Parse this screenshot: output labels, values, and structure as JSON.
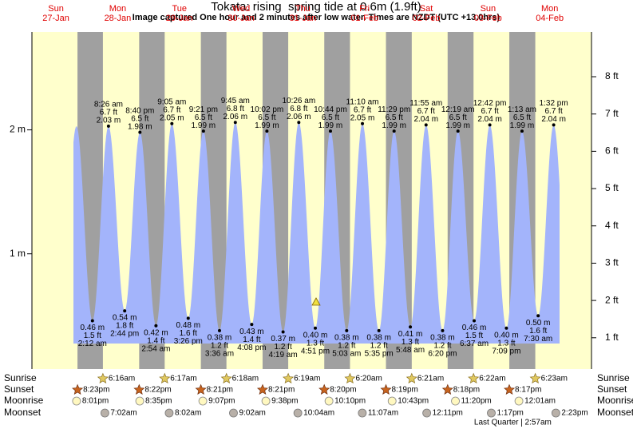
{
  "chart_data": {
    "type": "tide",
    "title": "Tokata: rising  spring tide at 0.6m (1.9ft)",
    "subtitle": "Image captured One hour and 2 minutes after low water. Times are NZDT (UTC +13.0hrs)",
    "ylim": [
      0.07,
      2.79
    ],
    "yticks": [
      {
        "value": 1,
        "label": "1 m"
      },
      {
        "value": 2,
        "label": "2 m"
      }
    ],
    "y2lim": [
      0.16,
      9.2
    ],
    "y2ticks": [
      {
        "value": 1,
        "label": "1 ft"
      },
      {
        "value": 2,
        "label": "2 ft"
      },
      {
        "value": 3,
        "label": "3 ft"
      },
      {
        "value": 4,
        "label": "4 ft"
      },
      {
        "value": 5,
        "label": "5 ft"
      },
      {
        "value": 6,
        "label": "6 ft"
      },
      {
        "value": 7,
        "label": "7 ft"
      },
      {
        "value": 8,
        "label": "8 ft"
      }
    ],
    "colors": {
      "day": "#ffffcc",
      "night": "#a0a0a0",
      "water": "#a3b4fb",
      "header": "#e00000"
    },
    "row_labels": {
      "sunrise": "Sunrise",
      "sunset": "Sunset",
      "moonrise": "Moonrise",
      "moonset": "Moonset"
    },
    "days": [
      {
        "name": "Sun",
        "date": "27-Jan",
        "sunset": "8:23pm",
        "moonrise": "8:01pm"
      },
      {
        "name": "Mon",
        "date": "28-Jan",
        "sunrise": "6:16am",
        "sunset": "8:22pm",
        "moonrise": "8:35pm",
        "moonset": "7:02am",
        "tides": [
          {
            "time": "2:12 am",
            "m": 0.46,
            "m_label": "0.46 m",
            "ft": 1.5,
            "ft_label": "1.5 ft"
          },
          {
            "time": "8:26 am",
            "m": 2.03,
            "m_label": "2.03 m",
            "ft": 6.7,
            "ft_label": "6.7 ft"
          },
          {
            "time": "2:44 pm",
            "m": 0.54,
            "m_label": "0.54 m",
            "ft": 1.8,
            "ft_label": "1.8 ft"
          },
          {
            "time": "8:40 pm",
            "m": 1.98,
            "m_label": "1.98 m",
            "ft": 6.5,
            "ft_label": "6.5 ft"
          }
        ]
      },
      {
        "name": "Tue",
        "date": "29-Jan",
        "sunrise": "6:17am",
        "sunset": "8:21pm",
        "moonrise": "9:07pm",
        "moonset": "8:02am",
        "tides": [
          {
            "time": "2:54 am",
            "m": 0.42,
            "m_label": "0.42 m",
            "ft": 1.4,
            "ft_label": "1.4 ft"
          },
          {
            "time": "9:05 am",
            "m": 2.05,
            "m_label": "2.05 m",
            "ft": 6.7,
            "ft_label": "6.7 ft"
          },
          {
            "time": "3:26 pm",
            "m": 0.48,
            "m_label": "0.48 m",
            "ft": 1.6,
            "ft_label": "1.6 ft"
          },
          {
            "time": "9:21 pm",
            "m": 1.99,
            "m_label": "1.99 m",
            "ft": 6.5,
            "ft_label": "6.5 ft"
          }
        ]
      },
      {
        "name": "Wed",
        "date": "30-Jan",
        "sunrise": "6:18am",
        "sunset": "8:21pm",
        "moonrise": "9:38pm",
        "moonset": "9:02am",
        "tides": [
          {
            "time": "3:36 am",
            "m": 0.38,
            "m_label": "0.38 m",
            "ft": 1.2,
            "ft_label": "1.2 ft"
          },
          {
            "time": "9:45 am",
            "m": 2.06,
            "m_label": "2.06 m",
            "ft": 6.8,
            "ft_label": "6.8 ft"
          },
          {
            "time": "4:08 pm",
            "m": 0.43,
            "m_label": "0.43 m",
            "ft": 1.4,
            "ft_label": "1.4 ft"
          },
          {
            "time": "10:02 pm",
            "m": 1.99,
            "m_label": "1.99 m",
            "ft": 6.5,
            "ft_label": "6.5 ft"
          }
        ]
      },
      {
        "name": "Thu",
        "date": "31-Jan",
        "sunrise": "6:19am",
        "sunset": "8:20pm",
        "moonrise": "10:10pm",
        "moonset": "10:04am",
        "tides": [
          {
            "time": "4:19 am",
            "m": 0.37,
            "m_label": "0.37 m",
            "ft": 1.2,
            "ft_label": "1.2 ft"
          },
          {
            "time": "10:26 am",
            "m": 2.06,
            "m_label": "2.06 m",
            "ft": 6.8,
            "ft_label": "6.8 ft"
          },
          {
            "time": "4:51 pm",
            "m": 0.4,
            "m_label": "0.40 m",
            "ft": 1.3,
            "ft_label": "1.3 ft"
          },
          {
            "time": "10:44 pm",
            "m": 1.99,
            "m_label": "1.99 m",
            "ft": 6.5,
            "ft_label": "6.5 ft"
          }
        ]
      },
      {
        "name": "Fri",
        "date": "01-Feb",
        "sunrise": "6:20am",
        "sunset": "8:19pm",
        "moonrise": "10:43pm",
        "moonset": "11:07am",
        "tides": [
          {
            "time": "5:03 am",
            "m": 0.38,
            "m_label": "0.38 m",
            "ft": 1.2,
            "ft_label": "1.2 ft"
          },
          {
            "time": "11:10 am",
            "m": 2.05,
            "m_label": "2.05 m",
            "ft": 6.7,
            "ft_label": "6.7 ft"
          },
          {
            "time": "5:35 pm",
            "m": 0.38,
            "m_label": "0.38 m",
            "ft": 1.2,
            "ft_label": "1.2 ft"
          },
          {
            "time": "11:29 pm",
            "m": 1.99,
            "m_label": "1.99 m",
            "ft": 6.5,
            "ft_label": "6.5 ft"
          }
        ]
      },
      {
        "name": "Sat",
        "date": "02-Feb",
        "sunrise": "6:21am",
        "sunset": "8:18pm",
        "moonrise": "11:20pm",
        "moonset": "12:11pm",
        "tides": [
          {
            "time": "5:48 am",
            "m": 0.41,
            "m_label": "0.41 m",
            "ft": 1.3,
            "ft_label": "1.3 ft"
          },
          {
            "time": "11:55 am",
            "m": 2.04,
            "m_label": "2.04 m",
            "ft": 6.7,
            "ft_label": "6.7 ft"
          },
          {
            "time": "6:20 pm",
            "m": 0.38,
            "m_label": "0.38 m",
            "ft": 1.2,
            "ft_label": "1.2 ft"
          }
        ]
      },
      {
        "name": "Sun",
        "date": "03-Feb",
        "sunrise": "6:22am",
        "sunset": "8:17pm",
        "moonset": "1:17pm",
        "tides": [
          {
            "time": "12:19 am",
            "m": 1.99,
            "m_label": "1.99 m",
            "ft": 6.5,
            "ft_label": "6.5 ft"
          },
          {
            "time": "6:37 am",
            "m": 0.46,
            "m_label": "0.46 m",
            "ft": 1.5,
            "ft_label": "1.5 ft"
          },
          {
            "time": "12:42 pm",
            "m": 2.04,
            "m_label": "2.04 m",
            "ft": 6.7,
            "ft_label": "6.7 ft"
          },
          {
            "time": "7:09 pm",
            "m": 0.4,
            "m_label": "0.40 m",
            "ft": 1.3,
            "ft_label": "1.3 ft"
          }
        ]
      },
      {
        "name": "Mon",
        "date": "04-Feb",
        "sunrise": "6:23am",
        "moonrise": "12:01am",
        "moonset": "2:23pm",
        "moon_phase": "Last Quarter",
        "moon_phase_time": "2:57am",
        "tides": [
          {
            "time": "1:13 am",
            "m": 1.99,
            "m_label": "1.99 m",
            "ft": 6.5,
            "ft_label": "6.5 ft"
          },
          {
            "time": "7:30 am",
            "m": 0.5,
            "m_label": "0.50 m",
            "ft": 1.6,
            "ft_label": "1.6 ft"
          },
          {
            "time": "1:32 pm",
            "m": 2.04,
            "m_label": "2.04 m",
            "ft": 6.7,
            "ft_label": "6.7 ft"
          }
        ]
      }
    ]
  }
}
